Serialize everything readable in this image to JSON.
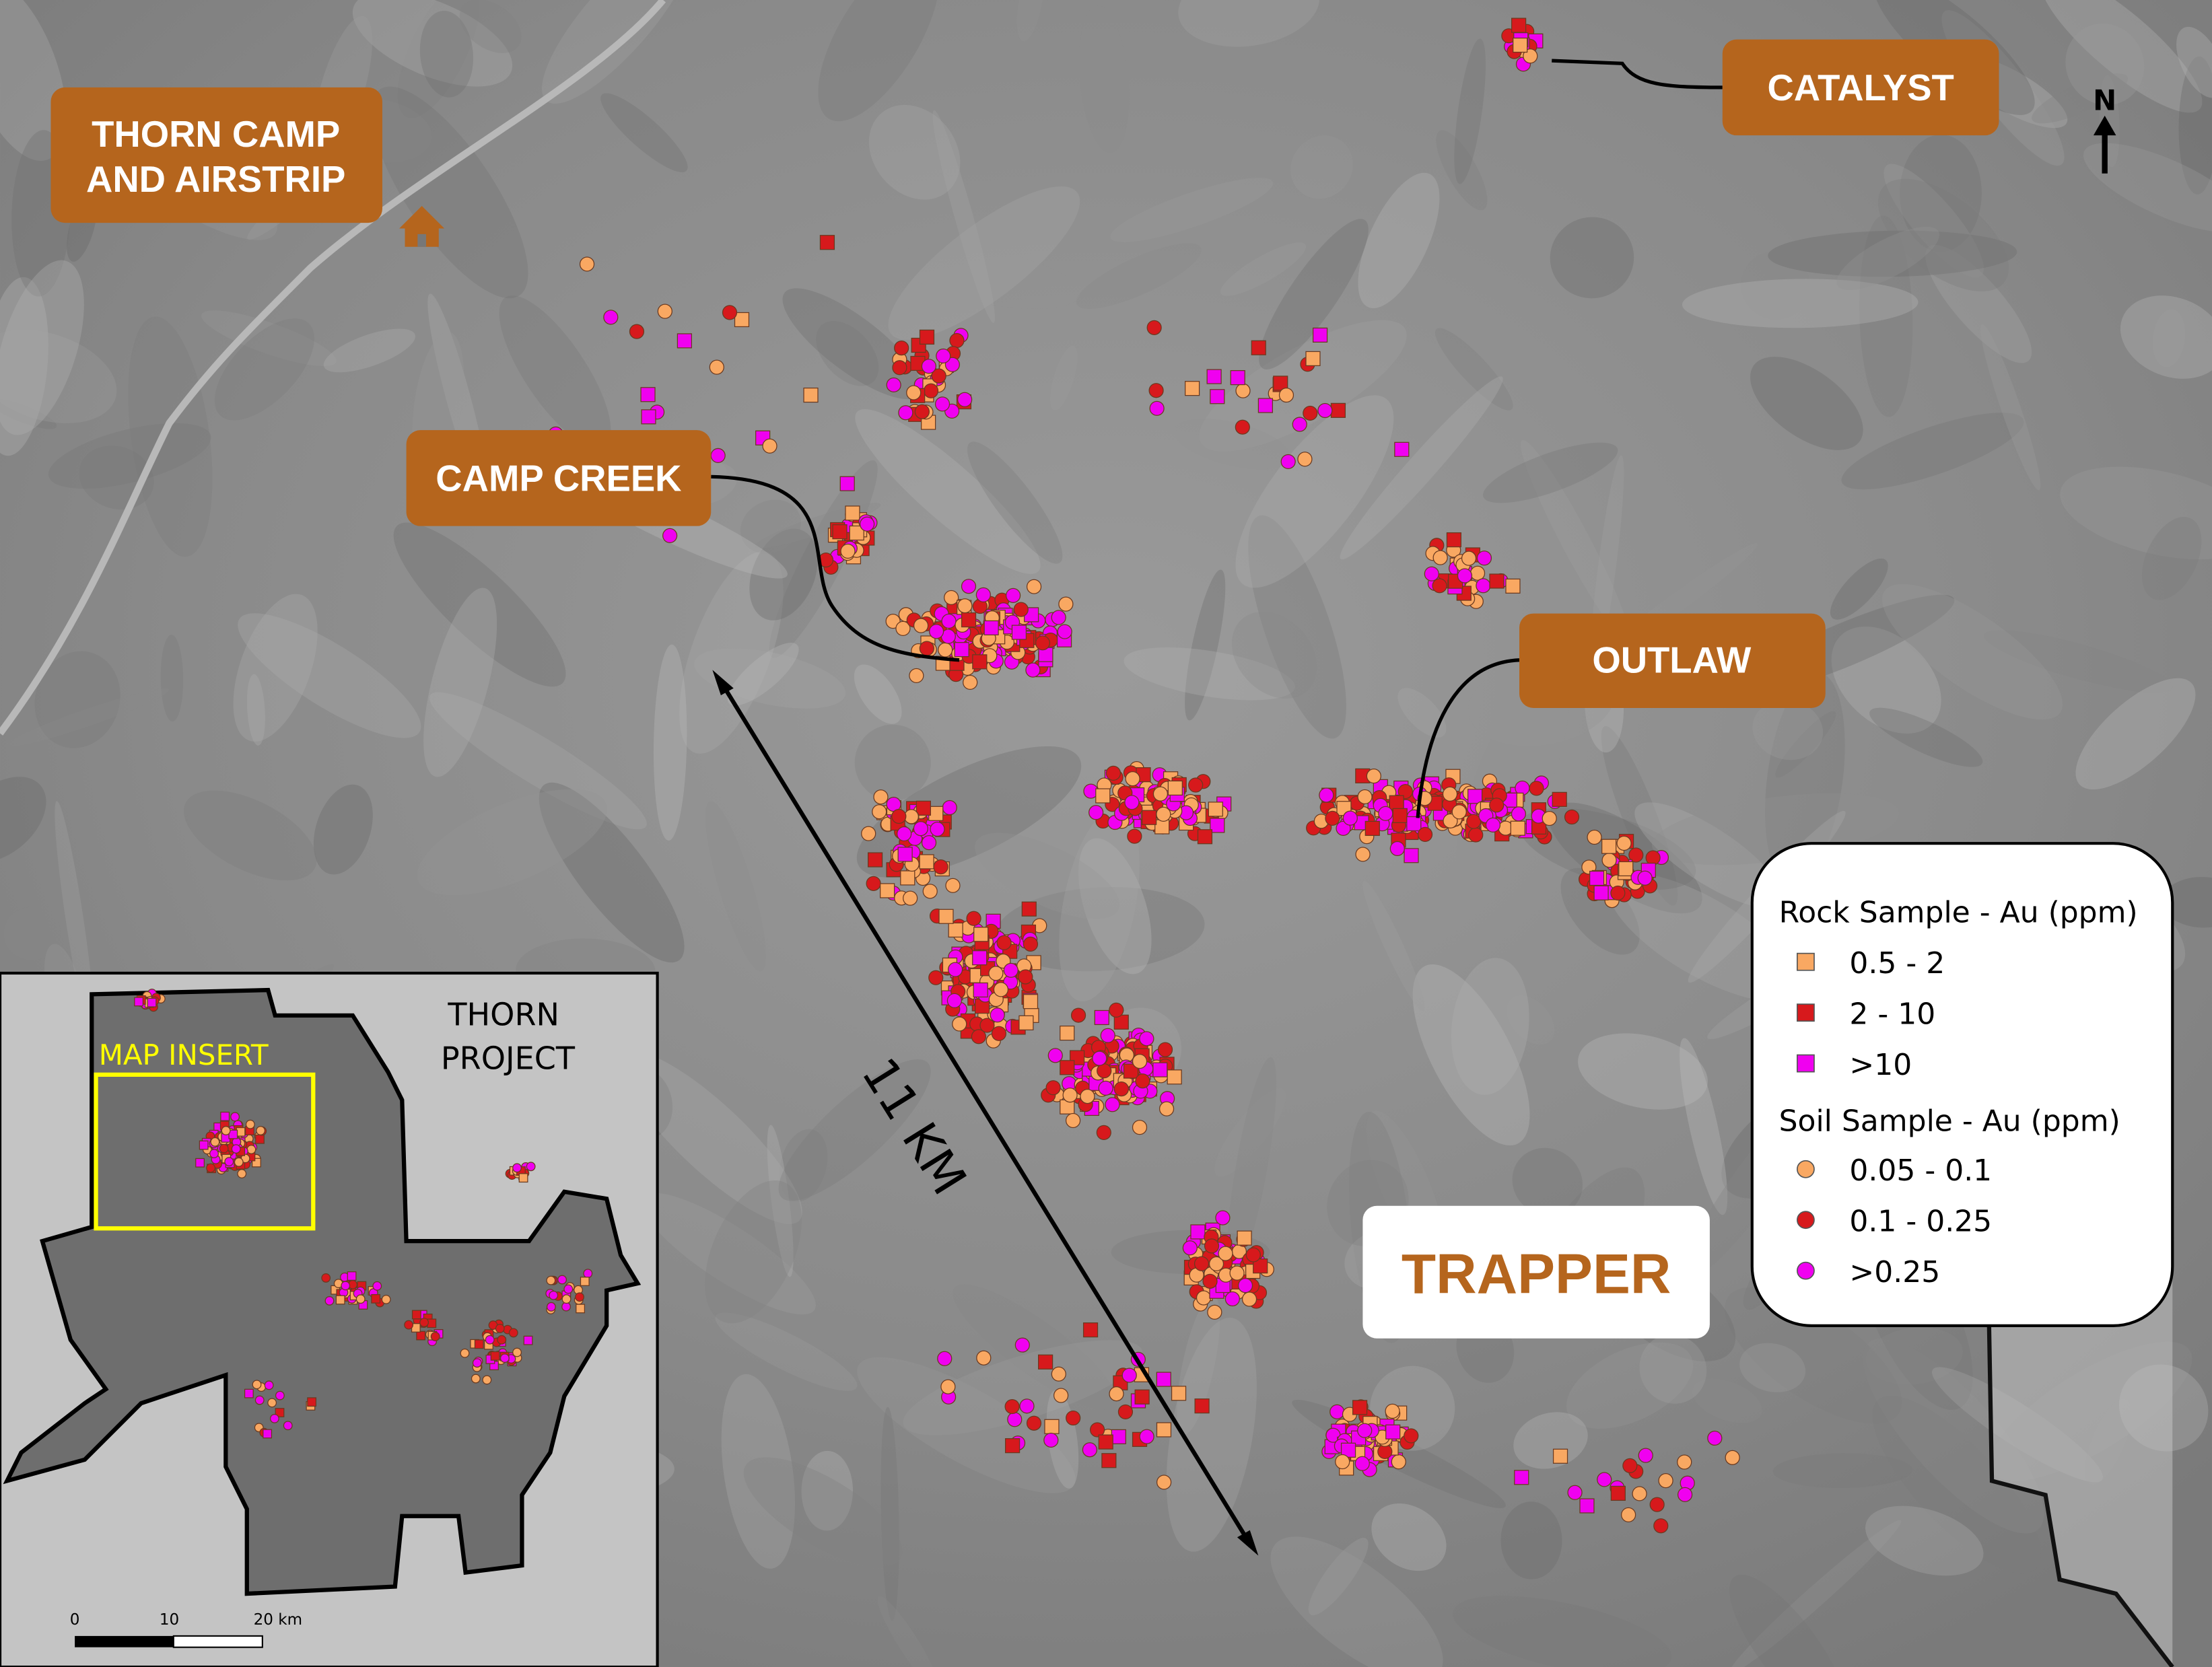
{
  "labels": {
    "thorn_camp_line1": "THORN CAMP",
    "thorn_camp_line2": "AND AIRSTRIP",
    "catalyst": "CATALYST",
    "camp_creek": "CAMP CREEK",
    "outlaw": "OUTLAW",
    "trapper": "TRAPPER",
    "distance": "11 KM",
    "north": "N"
  },
  "legend": {
    "rock_title": "Rock Sample  - Au (ppm)",
    "rock_items": [
      {
        "label": "0.5 - 2",
        "color": "#f9a862"
      },
      {
        "label": "2 - 10",
        "color": "#d7191c"
      },
      {
        "label": ">10",
        "color": "#f000f0"
      }
    ],
    "soil_title": "Soil Sample - Au (ppm)",
    "soil_items": [
      {
        "label": "0.05 - 0.1",
        "color": "#f9a862"
      },
      {
        "label": "0.1 - 0.25",
        "color": "#d7191c"
      },
      {
        "label": ">0.25",
        "color": "#f000f0"
      }
    ]
  },
  "inset": {
    "title_line1": "THORN",
    "title_line2": "PROJECT",
    "insert_label": "MAP INSERT",
    "insert_color": "#ffff00",
    "scale_labels": [
      "0",
      "10",
      "20 km"
    ]
  },
  "colors": {
    "label_box": "#b5651d",
    "trapper_text": "#b5651d"
  },
  "icons": {
    "camp": "house-icon",
    "north": "north-arrow-icon"
  }
}
